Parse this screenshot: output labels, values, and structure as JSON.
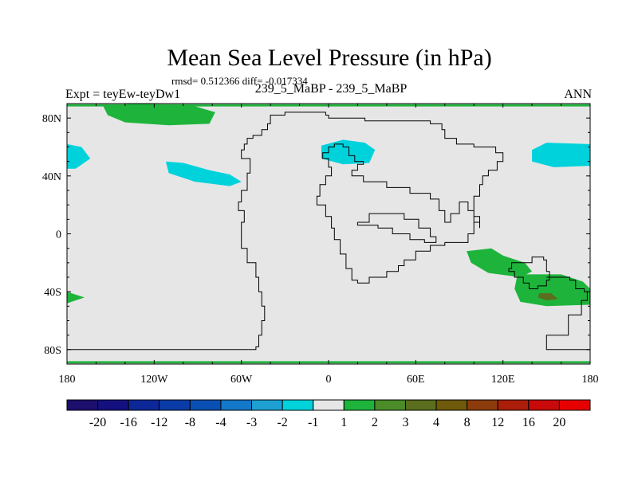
{
  "chart_data": {
    "type": "heatmap",
    "title": "Mean Sea Level Pressure (in hPa)",
    "stats": "rmsd= 0.512366 diff= -0.017334",
    "left_label": "Expt = teyEw-teyDw1",
    "center_label": "239_5_MaBP - 239_5_MaBP",
    "right_label": "ANN",
    "x_ticks": [
      "180",
      "120W",
      "60W",
      "0",
      "60E",
      "120E",
      "180"
    ],
    "x_tick_values": [
      -180,
      -120,
      -60,
      0,
      60,
      120,
      180
    ],
    "y_ticks": [
      "80N",
      "40N",
      "0",
      "40S",
      "80S"
    ],
    "y_tick_values": [
      80,
      40,
      0,
      -40,
      -80
    ],
    "xlim": [
      -180,
      180
    ],
    "ylim": [
      -90,
      90
    ],
    "contour_levels": [
      "-20",
      "-16",
      "-12",
      "-8",
      "-4",
      "-3",
      "-2",
      "-1",
      "1",
      "2",
      "3",
      "4",
      "8",
      "12",
      "16",
      "20"
    ],
    "colorbar_colors": [
      "#1c0f6e",
      "#15107f",
      "#0c2898",
      "#0a3ca8",
      "#0a50b4",
      "#1478c8",
      "#1ea0d2",
      "#00d2dc",
      "#e6e6e6",
      "#1eb43c",
      "#4b8c28",
      "#5a6e1e",
      "#6e5a0a",
      "#8c3c0a",
      "#aa1e0a",
      "#c80a0a",
      "#e60000"
    ],
    "background_color": "#e6e6e6",
    "field_regions": [
      {
        "name": "arctic-positive",
        "class": 2,
        "points": [
          [
            -155,
            88
          ],
          [
            -135,
            90
          ],
          [
            -95,
            89
          ],
          [
            -78,
            84
          ],
          [
            -82,
            76
          ],
          [
            -110,
            75
          ],
          [
            -140,
            77
          ],
          [
            -152,
            82
          ]
        ]
      },
      {
        "name": "arctic-band-positive",
        "class": 2,
        "points": [
          [
            -180,
            89.5
          ],
          [
            180,
            89.5
          ],
          [
            180,
            88
          ],
          [
            -180,
            88
          ]
        ]
      },
      {
        "name": "antarctic-band-positive",
        "class": 2,
        "points": [
          [
            -180,
            -88
          ],
          [
            180,
            -88
          ],
          [
            180,
            -89.5
          ],
          [
            -180,
            -89.5
          ]
        ]
      },
      {
        "name": "northpacific-negative-west",
        "class": -2,
        "points": [
          [
            -180,
            62
          ],
          [
            -170,
            60
          ],
          [
            -164,
            52
          ],
          [
            -174,
            45
          ],
          [
            -180,
            45
          ]
        ]
      },
      {
        "name": "northpacific-negative-east",
        "class": -2,
        "points": [
          [
            180,
            62
          ],
          [
            150,
            63
          ],
          [
            140,
            58
          ],
          [
            140,
            50
          ],
          [
            155,
            46
          ],
          [
            180,
            47
          ]
        ]
      },
      {
        "name": "northatlantic-negative",
        "class": -2,
        "points": [
          [
            -112,
            50
          ],
          [
            -100,
            49
          ],
          [
            -82,
            44
          ],
          [
            -68,
            41
          ],
          [
            -60,
            36
          ],
          [
            -68,
            33
          ],
          [
            -92,
            36
          ],
          [
            -110,
            42
          ]
        ]
      },
      {
        "name": "europe-negative",
        "class": -2,
        "points": [
          [
            -5,
            61
          ],
          [
            10,
            65
          ],
          [
            25,
            63
          ],
          [
            32,
            58
          ],
          [
            28,
            49
          ],
          [
            10,
            48
          ],
          [
            -5,
            52
          ]
        ]
      },
      {
        "name": "southindian-positive",
        "class": 2,
        "points": [
          [
            95,
            -12
          ],
          [
            112,
            -10
          ],
          [
            120,
            -15
          ],
          [
            135,
            -20
          ],
          [
            140,
            -26
          ],
          [
            132,
            -30
          ],
          [
            110,
            -27
          ],
          [
            98,
            -20
          ]
        ]
      },
      {
        "name": "southernocean-positive",
        "class": 2,
        "points": [
          [
            130,
            -28
          ],
          [
            160,
            -28
          ],
          [
            175,
            -33
          ],
          [
            180,
            -38
          ],
          [
            180,
            -49
          ],
          [
            150,
            -50
          ],
          [
            132,
            -47
          ],
          [
            128,
            -38
          ]
        ]
      },
      {
        "name": "southatlantic-positive",
        "class": 2,
        "points": [
          [
            -180,
            -40
          ],
          [
            -168,
            -44
          ],
          [
            -180,
            -48
          ]
        ]
      },
      {
        "name": "southernocean-core",
        "class": 3,
        "points": [
          [
            145,
            -41
          ],
          [
            153,
            -41
          ],
          [
            158,
            -45
          ],
          [
            150,
            -46
          ],
          [
            144,
            -44
          ]
        ]
      }
    ],
    "coastlines": [
      [
        [
          -55,
          -80
        ],
        [
          -180,
          -80
        ]
      ],
      [
        [
          -55,
          -80
        ],
        [
          -50,
          -78
        ],
        [
          -48,
          -70
        ],
        [
          -46,
          -60
        ],
        [
          -44,
          -50
        ],
        [
          -46,
          -40
        ],
        [
          -48,
          -30
        ],
        [
          -50,
          -20
        ],
        [
          -56,
          -10
        ],
        [
          -60,
          -2
        ],
        [
          -60,
          8
        ],
        [
          -58,
          16
        ],
        [
          -62,
          22
        ],
        [
          -60,
          30
        ],
        [
          -56,
          34
        ],
        [
          -56,
          42
        ],
        [
          -54,
          52
        ],
        [
          -60,
          58
        ],
        [
          -58,
          62
        ],
        [
          -56,
          66
        ],
        [
          -52,
          68
        ],
        [
          -46,
          72
        ],
        [
          -42,
          76
        ],
        [
          -40,
          82
        ],
        [
          -30,
          84
        ],
        [
          -10,
          84
        ],
        [
          -2,
          82
        ],
        [
          0,
          80
        ],
        [
          10,
          80
        ],
        [
          25,
          78
        ],
        [
          50,
          78
        ],
        [
          70,
          76
        ],
        [
          78,
          72
        ],
        [
          80,
          66
        ],
        [
          88,
          62
        ],
        [
          100,
          60
        ],
        [
          115,
          56
        ],
        [
          120,
          50
        ],
        [
          116,
          44
        ],
        [
          110,
          40
        ],
        [
          106,
          34
        ],
        [
          104,
          26
        ],
        [
          100,
          20
        ],
        [
          100,
          12
        ],
        [
          104,
          8
        ],
        [
          100,
          0
        ],
        [
          96,
          -6
        ],
        [
          80,
          -8
        ],
        [
          70,
          -12
        ],
        [
          60,
          -18
        ],
        [
          52,
          -22
        ],
        [
          48,
          -26
        ],
        [
          40,
          -30
        ],
        [
          28,
          -34
        ],
        [
          20,
          -32
        ],
        [
          16,
          -24
        ],
        [
          12,
          -14
        ],
        [
          8,
          -4
        ],
        [
          4,
          4
        ],
        [
          2,
          12
        ],
        [
          -2,
          20
        ],
        [
          -8,
          26
        ],
        [
          -6,
          34
        ],
        [
          -2,
          40
        ],
        [
          2,
          46
        ],
        [
          0,
          52
        ],
        [
          -4,
          56
        ],
        [
          0,
          60
        ],
        [
          4,
          62
        ],
        [
          10,
          60
        ],
        [
          14,
          54
        ],
        [
          18,
          50
        ],
        [
          22,
          50
        ],
        [
          24,
          48
        ],
        [
          20,
          44
        ],
        [
          16,
          40
        ],
        [
          24,
          36
        ],
        [
          40,
          32
        ],
        [
          56,
          28
        ],
        [
          70,
          24
        ],
        [
          76,
          16
        ],
        [
          80,
          8
        ],
        [
          84,
          14
        ],
        [
          90,
          22
        ],
        [
          96,
          16
        ],
        [
          100,
          8
        ],
        [
          104,
          4
        ]
      ],
      [
        [
          130,
          -20
        ],
        [
          140,
          -16
        ],
        [
          148,
          -18
        ],
        [
          150,
          -26
        ],
        [
          152,
          -32
        ],
        [
          150,
          -36
        ],
        [
          144,
          -38
        ],
        [
          138,
          -34
        ],
        [
          134,
          -30
        ],
        [
          128,
          -26
        ],
        [
          124,
          -24
        ],
        [
          126,
          -20
        ],
        [
          130,
          -20
        ]
      ],
      [
        [
          150,
          -30
        ],
        [
          160,
          -30
        ],
        [
          166,
          -32
        ],
        [
          170,
          -38
        ],
        [
          176,
          -40
        ],
        [
          178,
          -46
        ],
        [
          174,
          -56
        ],
        [
          165,
          -70
        ],
        [
          150,
          -80
        ],
        [
          155,
          -80
        ],
        [
          180,
          -80
        ]
      ],
      [
        [
          20,
          8
        ],
        [
          28,
          14
        ],
        [
          40,
          14
        ],
        [
          52,
          10
        ],
        [
          62,
          4
        ],
        [
          70,
          -2
        ],
        [
          74,
          -6
        ],
        [
          66,
          -4
        ],
        [
          56,
          0
        ],
        [
          44,
          4
        ],
        [
          34,
          6
        ],
        [
          20,
          8
        ]
      ]
    ]
  }
}
